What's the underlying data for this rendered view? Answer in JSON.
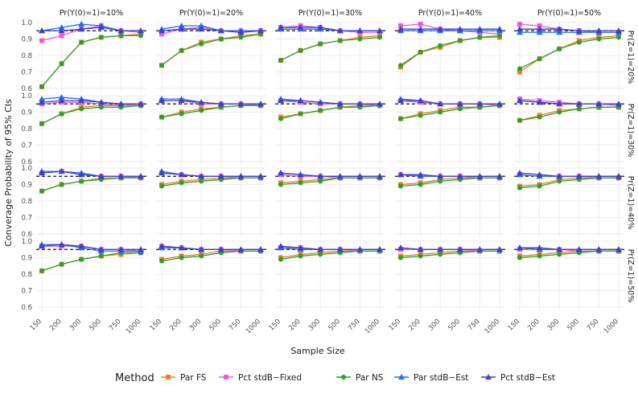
{
  "chart_data": {
    "type": "line",
    "layout": "facet-grid",
    "ylabel": "Converage Probability of 95% CIs",
    "xlabel": "Sample Size",
    "x_categories": [
      "150",
      "200",
      "300",
      "500",
      "750",
      "1000"
    ],
    "y_ticks": [
      0.6,
      0.7,
      0.8,
      0.9,
      1.0
    ],
    "ylim": [
      0.58,
      1.0
    ],
    "reference_line": 0.95,
    "grid": true,
    "legend": {
      "title": "Method",
      "position": "bottom"
    },
    "col_labels": [
      "Pr(Y(0)=1)=10%",
      "Pr(Y(0)=1)=20%",
      "Pr(Y(0)=1)=30%",
      "Pr(Y(0)=1)=40%",
      "Pr(Y(0)=1)=50%"
    ],
    "row_labels": [
      "Pr(Z=1)=20%",
      "Pr(Z=1)=30%",
      "Pr(Z=1)=40%",
      "Pr(Z=1)=50%"
    ],
    "series_styles": [
      {
        "name": "Par FS",
        "color": "#f07f1a",
        "marker": "square"
      },
      {
        "name": "Pct stdB−Fixed",
        "color": "#f05ad8",
        "marker": "square"
      },
      {
        "name": "Par NS",
        "color": "#2ca02c",
        "marker": "circle"
      },
      {
        "name": "Par stdB−Est",
        "color": "#1f6ff0",
        "marker": "triangle"
      },
      {
        "name": "Pct stdB−Est",
        "color": "#3f3fc8",
        "marker": "triangle"
      }
    ],
    "panels": [
      [
        {
          "series": [
            [
              0.61,
              0.75,
              0.88,
              0.91,
              0.92,
              0.93
            ],
            [
              0.89,
              0.92,
              0.96,
              0.98,
              0.95,
              0.94
            ],
            [
              0.61,
              0.75,
              0.88,
              0.91,
              0.92,
              0.92
            ],
            [
              0.95,
              0.97,
              0.99,
              0.98,
              0.95,
              0.95
            ],
            [
              0.95,
              0.95,
              0.96,
              0.97,
              0.95,
              0.95
            ]
          ]
        },
        {
          "series": [
            [
              0.74,
              0.83,
              0.88,
              0.9,
              0.92,
              0.93
            ],
            [
              0.93,
              0.96,
              0.97,
              0.95,
              0.95,
              0.95
            ],
            [
              0.74,
              0.83,
              0.87,
              0.9,
              0.91,
              0.93
            ],
            [
              0.96,
              0.98,
              0.98,
              0.95,
              0.95,
              0.95
            ],
            [
              0.95,
              0.96,
              0.96,
              0.95,
              0.94,
              0.95
            ]
          ]
        },
        {
          "series": [
            [
              0.77,
              0.83,
              0.87,
              0.89,
              0.91,
              0.92
            ],
            [
              0.97,
              0.98,
              0.97,
              0.95,
              0.94,
              0.94
            ],
            [
              0.77,
              0.83,
              0.87,
              0.89,
              0.9,
              0.91
            ],
            [
              0.96,
              0.96,
              0.96,
              0.95,
              0.95,
              0.95
            ],
            [
              0.97,
              0.97,
              0.97,
              0.95,
              0.95,
              0.95
            ]
          ]
        },
        {
          "series": [
            [
              0.73,
              0.82,
              0.85,
              0.89,
              0.91,
              0.91
            ],
            [
              0.98,
              0.99,
              0.96,
              0.95,
              0.94,
              0.93
            ],
            [
              0.74,
              0.82,
              0.86,
              0.89,
              0.91,
              0.92
            ],
            [
              0.95,
              0.95,
              0.95,
              0.95,
              0.95,
              0.95
            ],
            [
              0.96,
              0.96,
              0.96,
              0.96,
              0.96,
              0.96
            ]
          ]
        },
        {
          "series": [
            [
              0.7,
              0.78,
              0.84,
              0.89,
              0.91,
              0.92
            ],
            [
              0.99,
              0.98,
              0.96,
              0.95,
              0.94,
              0.94
            ],
            [
              0.72,
              0.78,
              0.84,
              0.88,
              0.9,
              0.91
            ],
            [
              0.94,
              0.94,
              0.94,
              0.94,
              0.94,
              0.94
            ],
            [
              0.96,
              0.96,
              0.96,
              0.95,
              0.95,
              0.95
            ]
          ]
        }
      ],
      [
        {
          "series": [
            [
              0.83,
              0.89,
              0.93,
              0.94,
              0.94,
              0.94
            ],
            [
              0.95,
              0.96,
              0.96,
              0.95,
              0.94,
              0.95
            ],
            [
              0.83,
              0.89,
              0.92,
              0.93,
              0.93,
              0.94
            ],
            [
              0.98,
              0.99,
              0.98,
              0.96,
              0.95,
              0.95
            ],
            [
              0.96,
              0.97,
              0.97,
              0.96,
              0.95,
              0.95
            ]
          ]
        },
        {
          "series": [
            [
              0.87,
              0.9,
              0.92,
              0.93,
              0.94,
              0.94
            ],
            [
              0.97,
              0.97,
              0.95,
              0.95,
              0.95,
              0.94
            ],
            [
              0.87,
              0.89,
              0.91,
              0.93,
              0.94,
              0.94
            ],
            [
              0.98,
              0.98,
              0.96,
              0.95,
              0.95,
              0.95
            ],
            [
              0.97,
              0.97,
              0.96,
              0.95,
              0.95,
              0.95
            ]
          ]
        },
        {
          "series": [
            [
              0.87,
              0.89,
              0.91,
              0.93,
              0.94,
              0.94
            ],
            [
              0.97,
              0.96,
              0.95,
              0.95,
              0.95,
              0.94
            ],
            [
              0.86,
              0.89,
              0.91,
              0.93,
              0.93,
              0.94
            ],
            [
              0.98,
              0.97,
              0.96,
              0.95,
              0.95,
              0.95
            ],
            [
              0.97,
              0.97,
              0.96,
              0.95,
              0.95,
              0.95
            ]
          ]
        },
        {
          "series": [
            [
              0.86,
              0.89,
              0.91,
              0.93,
              0.93,
              0.94
            ],
            [
              0.97,
              0.96,
              0.95,
              0.95,
              0.95,
              0.94
            ],
            [
              0.86,
              0.88,
              0.9,
              0.92,
              0.93,
              0.94
            ],
            [
              0.98,
              0.97,
              0.95,
              0.95,
              0.95,
              0.95
            ],
            [
              0.97,
              0.97,
              0.95,
              0.95,
              0.95,
              0.95
            ]
          ]
        },
        {
          "series": [
            [
              0.85,
              0.88,
              0.91,
              0.92,
              0.93,
              0.93
            ],
            [
              0.98,
              0.97,
              0.96,
              0.95,
              0.95,
              0.94
            ],
            [
              0.85,
              0.87,
              0.9,
              0.92,
              0.93,
              0.93
            ],
            [
              0.97,
              0.96,
              0.95,
              0.95,
              0.95,
              0.95
            ],
            [
              0.97,
              0.96,
              0.95,
              0.95,
              0.95,
              0.95
            ]
          ]
        }
      ],
      [
        {
          "series": [
            [
              0.86,
              0.9,
              0.92,
              0.94,
              0.94,
              0.94
            ],
            [
              0.97,
              0.98,
              0.96,
              0.95,
              0.95,
              0.94
            ],
            [
              0.86,
              0.9,
              0.92,
              0.93,
              0.94,
              0.94
            ],
            [
              0.98,
              0.98,
              0.97,
              0.95,
              0.95,
              0.95
            ],
            [
              0.97,
              0.98,
              0.96,
              0.95,
              0.95,
              0.95
            ]
          ]
        },
        {
          "series": [
            [
              0.9,
              0.92,
              0.93,
              0.94,
              0.94,
              0.94
            ],
            [
              0.97,
              0.96,
              0.95,
              0.95,
              0.94,
              0.94
            ],
            [
              0.89,
              0.91,
              0.92,
              0.93,
              0.94,
              0.94
            ],
            [
              0.98,
              0.96,
              0.95,
              0.95,
              0.95,
              0.95
            ],
            [
              0.97,
              0.96,
              0.95,
              0.95,
              0.95,
              0.95
            ]
          ]
        },
        {
          "series": [
            [
              0.91,
              0.92,
              0.93,
              0.94,
              0.94,
              0.94
            ],
            [
              0.96,
              0.95,
              0.95,
              0.94,
              0.94,
              0.94
            ],
            [
              0.9,
              0.91,
              0.92,
              0.94,
              0.94,
              0.94
            ],
            [
              0.97,
              0.96,
              0.95,
              0.95,
              0.95,
              0.95
            ],
            [
              0.97,
              0.96,
              0.95,
              0.95,
              0.95,
              0.95
            ]
          ]
        },
        {
          "series": [
            [
              0.9,
              0.91,
              0.93,
              0.94,
              0.94,
              0.94
            ],
            [
              0.96,
              0.95,
              0.95,
              0.95,
              0.94,
              0.94
            ],
            [
              0.89,
              0.9,
              0.92,
              0.93,
              0.94,
              0.94
            ],
            [
              0.96,
              0.95,
              0.95,
              0.95,
              0.95,
              0.95
            ],
            [
              0.96,
              0.96,
              0.95,
              0.95,
              0.95,
              0.95
            ]
          ]
        },
        {
          "series": [
            [
              0.89,
              0.9,
              0.93,
              0.94,
              0.94,
              0.94
            ],
            [
              0.96,
              0.95,
              0.95,
              0.95,
              0.94,
              0.94
            ],
            [
              0.88,
              0.89,
              0.92,
              0.93,
              0.94,
              0.94
            ],
            [
              0.96,
              0.95,
              0.95,
              0.95,
              0.95,
              0.95
            ],
            [
              0.97,
              0.96,
              0.95,
              0.95,
              0.95,
              0.95
            ]
          ]
        }
      ],
      [
        {
          "series": [
            [
              0.82,
              0.86,
              0.89,
              0.91,
              0.92,
              0.93
            ],
            [
              0.97,
              0.97,
              0.97,
              0.95,
              0.95,
              0.94
            ],
            [
              0.82,
              0.86,
              0.89,
              0.91,
              0.93,
              0.93
            ],
            [
              0.98,
              0.98,
              0.96,
              0.94,
              0.94,
              0.94
            ],
            [
              0.97,
              0.98,
              0.97,
              0.95,
              0.95,
              0.95
            ]
          ]
        },
        {
          "series": [
            [
              0.89,
              0.91,
              0.92,
              0.94,
              0.94,
              0.94
            ],
            [
              0.97,
              0.96,
              0.95,
              0.95,
              0.94,
              0.94
            ],
            [
              0.88,
              0.9,
              0.91,
              0.93,
              0.94,
              0.94
            ],
            [
              0.96,
              0.96,
              0.95,
              0.95,
              0.95,
              0.95
            ],
            [
              0.97,
              0.96,
              0.95,
              0.95,
              0.95,
              0.95
            ]
          ]
        },
        {
          "series": [
            [
              0.9,
              0.92,
              0.93,
              0.94,
              0.94,
              0.94
            ],
            [
              0.96,
              0.96,
              0.95,
              0.95,
              0.94,
              0.94
            ],
            [
              0.89,
              0.91,
              0.92,
              0.93,
              0.94,
              0.94
            ],
            [
              0.96,
              0.95,
              0.95,
              0.95,
              0.95,
              0.95
            ],
            [
              0.97,
              0.96,
              0.95,
              0.95,
              0.95,
              0.95
            ]
          ]
        },
        {
          "series": [
            [
              0.91,
              0.92,
              0.93,
              0.94,
              0.94,
              0.94
            ],
            [
              0.95,
              0.95,
              0.95,
              0.95,
              0.94,
              0.94
            ],
            [
              0.9,
              0.91,
              0.92,
              0.93,
              0.94,
              0.94
            ],
            [
              0.96,
              0.95,
              0.95,
              0.95,
              0.95,
              0.95
            ],
            [
              0.96,
              0.95,
              0.95,
              0.95,
              0.95,
              0.95
            ]
          ]
        },
        {
          "series": [
            [
              0.91,
              0.92,
              0.93,
              0.94,
              0.94,
              0.94
            ],
            [
              0.95,
              0.95,
              0.95,
              0.94,
              0.94,
              0.94
            ],
            [
              0.9,
              0.91,
              0.92,
              0.93,
              0.94,
              0.94
            ],
            [
              0.96,
              0.95,
              0.95,
              0.95,
              0.95,
              0.95
            ],
            [
              0.96,
              0.96,
              0.95,
              0.95,
              0.95,
              0.95
            ]
          ]
        }
      ]
    ]
  }
}
